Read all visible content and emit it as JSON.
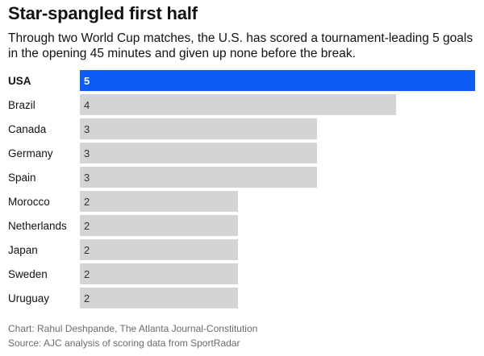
{
  "header": {
    "title": "Star-spangled first half",
    "subtitle": "Through two World Cup matches, the U.S. has scored a tournament-leading 5 goals in the opening 45 minutes and given up none before the break."
  },
  "chart_data": {
    "type": "bar",
    "orientation": "horizontal",
    "title": "Star-spangled first half",
    "categories": [
      "USA",
      "Brazil",
      "Canada",
      "Germany",
      "Spain",
      "Morocco",
      "Netherlands",
      "Japan",
      "Sweden",
      "Uruguay"
    ],
    "values": [
      5,
      4,
      3,
      3,
      3,
      2,
      2,
      2,
      2,
      2
    ],
    "highlight": "USA",
    "xlim": [
      0,
      5
    ],
    "grid": false,
    "legend": "none",
    "xlabel": "",
    "ylabel": ""
  },
  "colors": {
    "highlight_bar": "#0e5cf5",
    "default_bar": "#d4d4d4",
    "highlight_label": "#ffffff",
    "default_label": "#333333",
    "category_text": "#121212"
  },
  "footer": {
    "credit": "Chart: Rahul Deshpande, The Atlanta Journal-Constitution",
    "source": "Source: AJC analysis of scoring data from SportRadar"
  }
}
